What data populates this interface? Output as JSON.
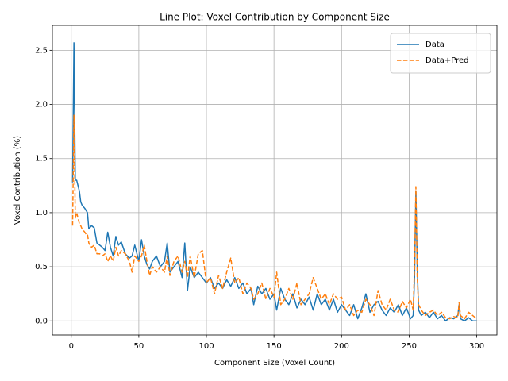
{
  "chart_data": {
    "type": "line",
    "title": "Line Plot: Voxel Contribution by Component Size",
    "x_label": "Component Size (Voxel Count)",
    "y_label": "Voxel Contribution (%)",
    "x": [
      1,
      2,
      3,
      4,
      5,
      6,
      7,
      8,
      10,
      11,
      12,
      13,
      15,
      17,
      19,
      21,
      23,
      25,
      27,
      29,
      31,
      33,
      35,
      37,
      40,
      43,
      45,
      47,
      50,
      52,
      54,
      56,
      58,
      60,
      63,
      66,
      69,
      71,
      73,
      76,
      79,
      82,
      84,
      86,
      88,
      91,
      94,
      97,
      100,
      103,
      106,
      109,
      112,
      115,
      118,
      121,
      124,
      127,
      130,
      133,
      135,
      138,
      141,
      144,
      147,
      150,
      152,
      155,
      158,
      161,
      164,
      167,
      170,
      173,
      176,
      179,
      182,
      185,
      188,
      191,
      194,
      197,
      200,
      203,
      206,
      209,
      212,
      215,
      218,
      221,
      224,
      227,
      230,
      233,
      236,
      239,
      242,
      245,
      248,
      251,
      253,
      254,
      255,
      256,
      257,
      259,
      262,
      265,
      268,
      271,
      274,
      277,
      280,
      283,
      286,
      287,
      288,
      291,
      294,
      297,
      300
    ],
    "series": [
      {
        "name": "Data",
        "color": "#1f77b4",
        "linestyle": "solid",
        "values": [
          1.28,
          2.57,
          1.3,
          1.3,
          1.25,
          1.2,
          1.1,
          1.07,
          1.04,
          1.02,
          1.0,
          0.85,
          0.88,
          0.86,
          0.72,
          0.7,
          0.68,
          0.65,
          0.82,
          0.68,
          0.6,
          0.78,
          0.7,
          0.73,
          0.62,
          0.58,
          0.6,
          0.7,
          0.55,
          0.75,
          0.6,
          0.52,
          0.48,
          0.55,
          0.6,
          0.5,
          0.55,
          0.72,
          0.45,
          0.5,
          0.55,
          0.4,
          0.72,
          0.28,
          0.5,
          0.4,
          0.45,
          0.4,
          0.35,
          0.4,
          0.3,
          0.35,
          0.3,
          0.38,
          0.32,
          0.4,
          0.3,
          0.35,
          0.25,
          0.3,
          0.15,
          0.32,
          0.25,
          0.3,
          0.2,
          0.25,
          0.1,
          0.3,
          0.2,
          0.15,
          0.25,
          0.12,
          0.2,
          0.15,
          0.22,
          0.1,
          0.25,
          0.15,
          0.2,
          0.1,
          0.2,
          0.08,
          0.15,
          0.1,
          0.05,
          0.15,
          0.02,
          0.12,
          0.25,
          0.08,
          0.15,
          0.18,
          0.1,
          0.05,
          0.12,
          0.08,
          0.15,
          0.05,
          0.12,
          0.02,
          0.05,
          0.4,
          1.2,
          0.5,
          0.1,
          0.05,
          0.08,
          0.03,
          0.08,
          0.02,
          0.05,
          0.0,
          0.03,
          0.02,
          0.05,
          0.15,
          0.02,
          0.0,
          0.03,
          0.0,
          0.0
        ]
      },
      {
        "name": "Data+Pred",
        "color": "#ff7f0e",
        "linestyle": "dashed",
        "values": [
          0.88,
          1.9,
          0.95,
          1.0,
          0.95,
          0.9,
          0.88,
          0.85,
          0.82,
          0.8,
          0.8,
          0.72,
          0.68,
          0.7,
          0.62,
          0.62,
          0.6,
          0.62,
          0.55,
          0.6,
          0.55,
          0.68,
          0.6,
          0.65,
          0.62,
          0.55,
          0.45,
          0.6,
          0.55,
          0.6,
          0.7,
          0.55,
          0.42,
          0.5,
          0.45,
          0.5,
          0.45,
          0.6,
          0.42,
          0.55,
          0.6,
          0.45,
          0.55,
          0.4,
          0.6,
          0.4,
          0.62,
          0.65,
          0.35,
          0.4,
          0.25,
          0.42,
          0.3,
          0.45,
          0.58,
          0.35,
          0.4,
          0.25,
          0.35,
          0.3,
          0.2,
          0.25,
          0.35,
          0.2,
          0.3,
          0.22,
          0.45,
          0.15,
          0.2,
          0.3,
          0.2,
          0.35,
          0.15,
          0.2,
          0.25,
          0.4,
          0.3,
          0.2,
          0.25,
          0.15,
          0.25,
          0.2,
          0.22,
          0.1,
          0.15,
          0.05,
          0.1,
          0.08,
          0.2,
          0.15,
          0.05,
          0.28,
          0.15,
          0.1,
          0.2,
          0.1,
          0.08,
          0.18,
          0.12,
          0.2,
          0.1,
          0.5,
          1.24,
          0.4,
          0.15,
          0.1,
          0.05,
          0.08,
          0.1,
          0.05,
          0.08,
          0.03,
          0.02,
          0.04,
          0.03,
          0.17,
          0.05,
          0.02,
          0.08,
          0.05,
          0.02
        ]
      }
    ],
    "xlim": [
      -13.95,
      314.95
    ],
    "ylim": [
      -0.13,
      2.73
    ],
    "xticks": [
      0,
      50,
      100,
      150,
      200,
      250,
      300
    ],
    "yticks": [
      {
        "value": 0,
        "label": "0.0"
      },
      0.5,
      {
        "value": 1,
        "label": "1.0"
      },
      1.5,
      {
        "value": 2,
        "label": "2.0"
      },
      2.5
    ],
    "grid": true,
    "legend": "upper right"
  }
}
